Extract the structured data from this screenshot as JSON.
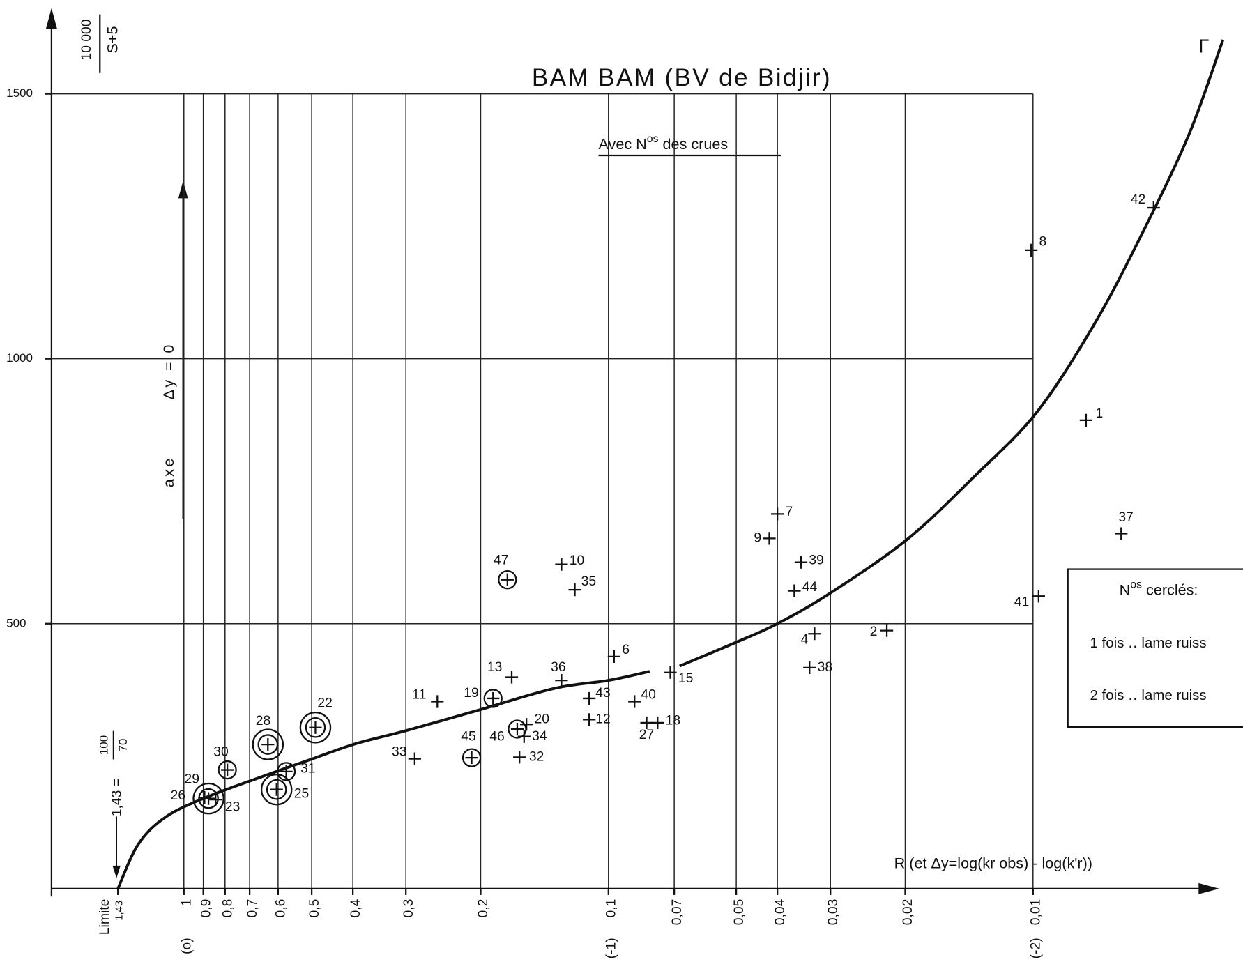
{
  "chart_data": {
    "type": "scatter",
    "title": "BAM BAM (BV de Bidjir)",
    "subtitle_parts": [
      "Avec N",
      "os",
      " des crues"
    ],
    "y_label_numerator": "10 000",
    "y_label_denominator": "S+5",
    "x_label": "R (et Δy=log(kr obs) - log(k'r))",
    "axis_note_parts": [
      "axe",
      "Δy = 0"
    ],
    "limit_label": "Limite",
    "limit_equation": "1,43 =",
    "limit_numerator": "100",
    "limit_denominator": "70",
    "curve_label": "Γ",
    "legend_title_parts": [
      "N",
      "os",
      " cerclés:"
    ],
    "legend_entries": [
      "1 fois ‥ lame ruiss",
      "2 fois ‥ lame ruiss"
    ],
    "xscale": "log",
    "xlim": [
      2.05,
      0.0033
    ],
    "ylim": [
      0,
      1650
    ],
    "xticks": [
      {
        "value": 1.43,
        "label": "1,43"
      },
      1,
      {
        "value": 0.9,
        "label": "0,9"
      },
      {
        "value": 0.8,
        "label": "0,8"
      },
      {
        "value": 0.7,
        "label": "0,7"
      },
      {
        "value": 0.6,
        "label": "0,6"
      },
      {
        "value": 0.5,
        "label": "0,5"
      },
      {
        "value": 0.4,
        "label": "0,4"
      },
      {
        "value": 0.3,
        "label": "0,3"
      },
      {
        "value": 0.2,
        "label": "0,2"
      },
      {
        "value": 0.1,
        "label": "0,1"
      },
      {
        "value": 0.07,
        "label": "0,07"
      },
      {
        "value": 0.05,
        "label": "0,05"
      },
      {
        "value": 0.04,
        "label": "0,04"
      },
      {
        "value": 0.03,
        "label": "0,03"
      },
      {
        "value": 0.02,
        "label": "0,02"
      },
      {
        "value": 0.01,
        "label": "0,01"
      }
    ],
    "decade_marks": [
      {
        "value": 1,
        "label": "(o)"
      },
      {
        "value": 0.1,
        "label": "(-1)"
      },
      {
        "value": 0.01,
        "label": "(-2)"
      }
    ],
    "yticks": [
      500,
      1000,
      1500
    ],
    "grid": true,
    "color": "#111111",
    "point_labels": [
      "1",
      "8",
      "42",
      "37",
      "41",
      "2",
      "7",
      "9",
      "39",
      "44",
      "4",
      "38",
      "15",
      "6",
      "10",
      "35",
      "47",
      "13",
      "36",
      "43",
      "40",
      "12",
      "18",
      "27",
      "11",
      "19",
      "20",
      "46",
      "34",
      "32",
      "45",
      "33",
      "22",
      "28",
      "30",
      "31",
      "25",
      "29",
      "26",
      "23"
    ],
    "x": [
      0.0075,
      0.0101,
      0.0052,
      0.0062,
      0.0097,
      0.0221,
      0.04,
      0.0418,
      0.0352,
      0.0365,
      0.0327,
      0.0336,
      0.0715,
      0.097,
      0.129,
      0.12,
      0.173,
      0.169,
      0.129,
      0.111,
      0.0868,
      0.111,
      0.0766,
      0.0813,
      0.253,
      0.187,
      0.156,
      0.164,
      0.158,
      0.162,
      0.21,
      0.286,
      0.49,
      0.634,
      0.79,
      0.574,
      0.605,
      0.875,
      0.894,
      0.842
    ],
    "values": [
      884,
      1205,
      1285,
      670,
      552,
      487,
      707,
      661,
      616,
      562,
      481,
      417,
      408,
      438,
      612,
      564,
      583,
      399,
      393,
      359,
      353,
      319,
      313,
      313,
      353,
      359,
      310,
      301,
      287,
      248,
      247,
      245,
      304,
      272,
      224,
      221,
      187,
      170,
      172,
      168
    ],
    "circles": [
      0,
      0,
      0,
      0,
      0,
      0,
      0,
      0,
      0,
      0,
      0,
      0,
      0,
      0,
      0,
      0,
      1,
      0,
      0,
      0,
      0,
      0,
      0,
      0,
      0,
      1,
      0,
      1,
      0,
      0,
      1,
      0,
      2,
      2,
      1,
      1,
      2,
      2,
      0,
      0
    ],
    "curve": {
      "x": [
        1.43,
        1.28,
        1.1,
        0.875,
        0.656,
        0.486,
        0.392,
        0.3,
        0.2,
        0.134,
        0.1,
        0.08,
        null,
        0.068,
        0.05,
        0.04,
        0.03,
        0.0198,
        0.0137,
        0.0098,
        0.0072,
        0.0056,
        0.0043,
        0.00357
      ],
      "y": [
        0,
        84,
        136,
        174,
        211,
        248,
        274,
        298,
        338,
        378,
        393,
        410,
        null,
        420,
        465,
        500,
        558,
        659,
        779,
        899,
        1063,
        1228,
        1422,
        1602
      ]
    }
  }
}
